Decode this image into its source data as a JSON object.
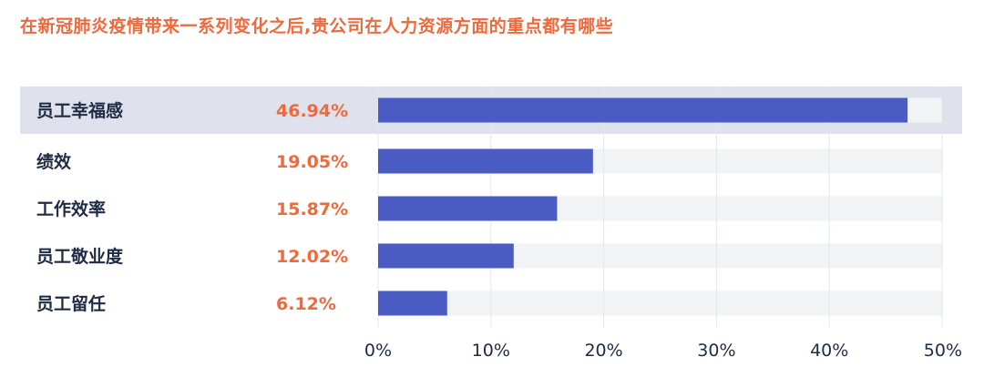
{
  "title": "在新冠肺炎疫情带来一系列变化之后,贵公司在人力资源方面的重点都有哪些",
  "colors": {
    "title": "#ee6a3d",
    "bar": "#4a5bc4",
    "track": "#f2f3f5",
    "highlight_row": "#dfe2ec",
    "value_text": "#ee6a3d",
    "label_text": "#1f2a44"
  },
  "chart_data": {
    "type": "bar",
    "orientation": "horizontal",
    "title": "在新冠肺炎疫情带来一系列变化之后,贵公司在人力资源方面的重点都有哪些",
    "categories": [
      "员工幸福感",
      "绩效",
      "工作效率",
      "员工敬业度",
      "员工留任"
    ],
    "values": [
      46.94,
      19.05,
      15.87,
      12.02,
      6.12
    ],
    "value_labels": [
      "46.94%",
      "19.05%",
      "15.87%",
      "12.02%",
      "6.12%"
    ],
    "xlim": [
      0,
      50
    ],
    "xticks": [
      "0%",
      "10%",
      "20%",
      "30%",
      "40%",
      "50%"
    ],
    "highlighted_category": "员工幸福感",
    "grid": "vertical"
  }
}
